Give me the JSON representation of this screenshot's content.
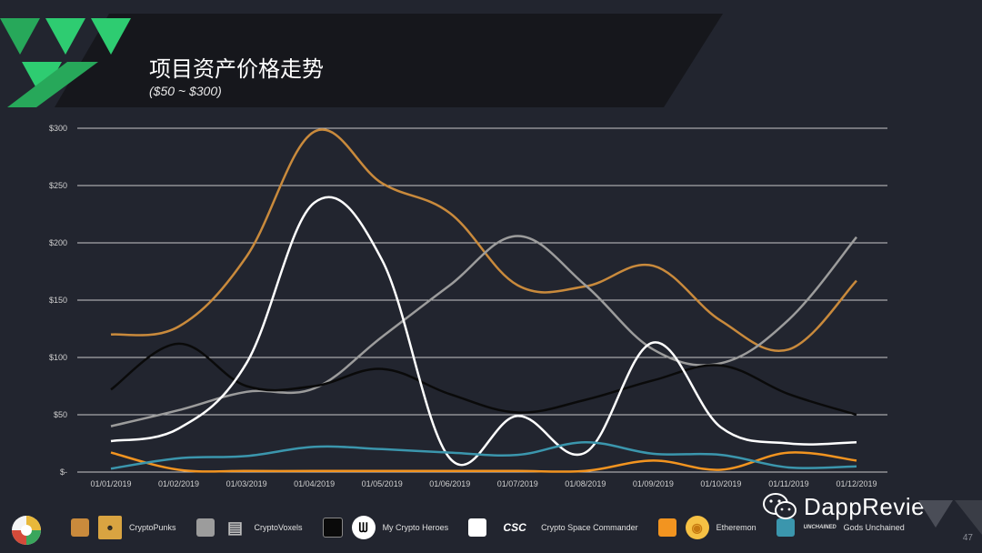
{
  "title": "项目资产价格走势",
  "subtitle": "($50 ~ $300)",
  "page_number": "47",
  "brand": "DappReview",
  "colors": {
    "background": "#22252f",
    "grid": "#c8c8c8",
    "accent_green": "#2ecc71"
  },
  "chart_data": {
    "type": "line",
    "x": [
      "01/01/2019",
      "01/02/2019",
      "01/03/2019",
      "01/04/2019",
      "01/05/2019",
      "01/06/2019",
      "01/07/2019",
      "01/08/2019",
      "01/09/2019",
      "01/10/2019",
      "01/11/2019",
      "01/12/2019"
    ],
    "ylim": [
      0,
      300
    ],
    "yticks": [
      "$-",
      "$50",
      "$100",
      "$150",
      "$200",
      "$250",
      "$300"
    ],
    "grid": true,
    "legend_position": "bottom",
    "series": [
      {
        "name": "CryptoPunks",
        "color": "#c98a3c",
        "values": [
          120,
          127,
          188,
          297,
          252,
          226,
          163,
          162,
          180,
          132,
          107,
          167
        ]
      },
      {
        "name": "CryptoVoxels",
        "color": "#9c9c9c",
        "values": [
          40,
          54,
          70,
          73,
          118,
          163,
          206,
          163,
          107,
          95,
          133,
          205
        ]
      },
      {
        "name": "My Crypto Heroes",
        "color": "#0a0a0a",
        "values": [
          72,
          112,
          75,
          75,
          90,
          68,
          52,
          63,
          80,
          93,
          68,
          50
        ]
      },
      {
        "name": "Crypto Space Commander",
        "color": "#ffffff",
        "values": [
          27,
          38,
          95,
          235,
          185,
          12,
          49,
          17,
          113,
          39,
          25,
          26
        ]
      },
      {
        "name": "Etheremon",
        "color": "#f29420",
        "values": [
          17,
          2,
          1,
          1,
          1,
          1,
          1,
          1,
          10,
          2,
          17,
          10
        ]
      },
      {
        "name": "Gods Unchained",
        "color": "#3b96ad",
        "values": [
          3,
          12,
          14,
          22,
          20,
          17,
          15,
          26,
          16,
          15,
          4,
          5
        ]
      }
    ]
  },
  "legend_logos": {
    "my_crypto_heroes": "ᗯ",
    "crypto_space_commander": "CSC",
    "gods_unchained": "UNCHAINED"
  }
}
